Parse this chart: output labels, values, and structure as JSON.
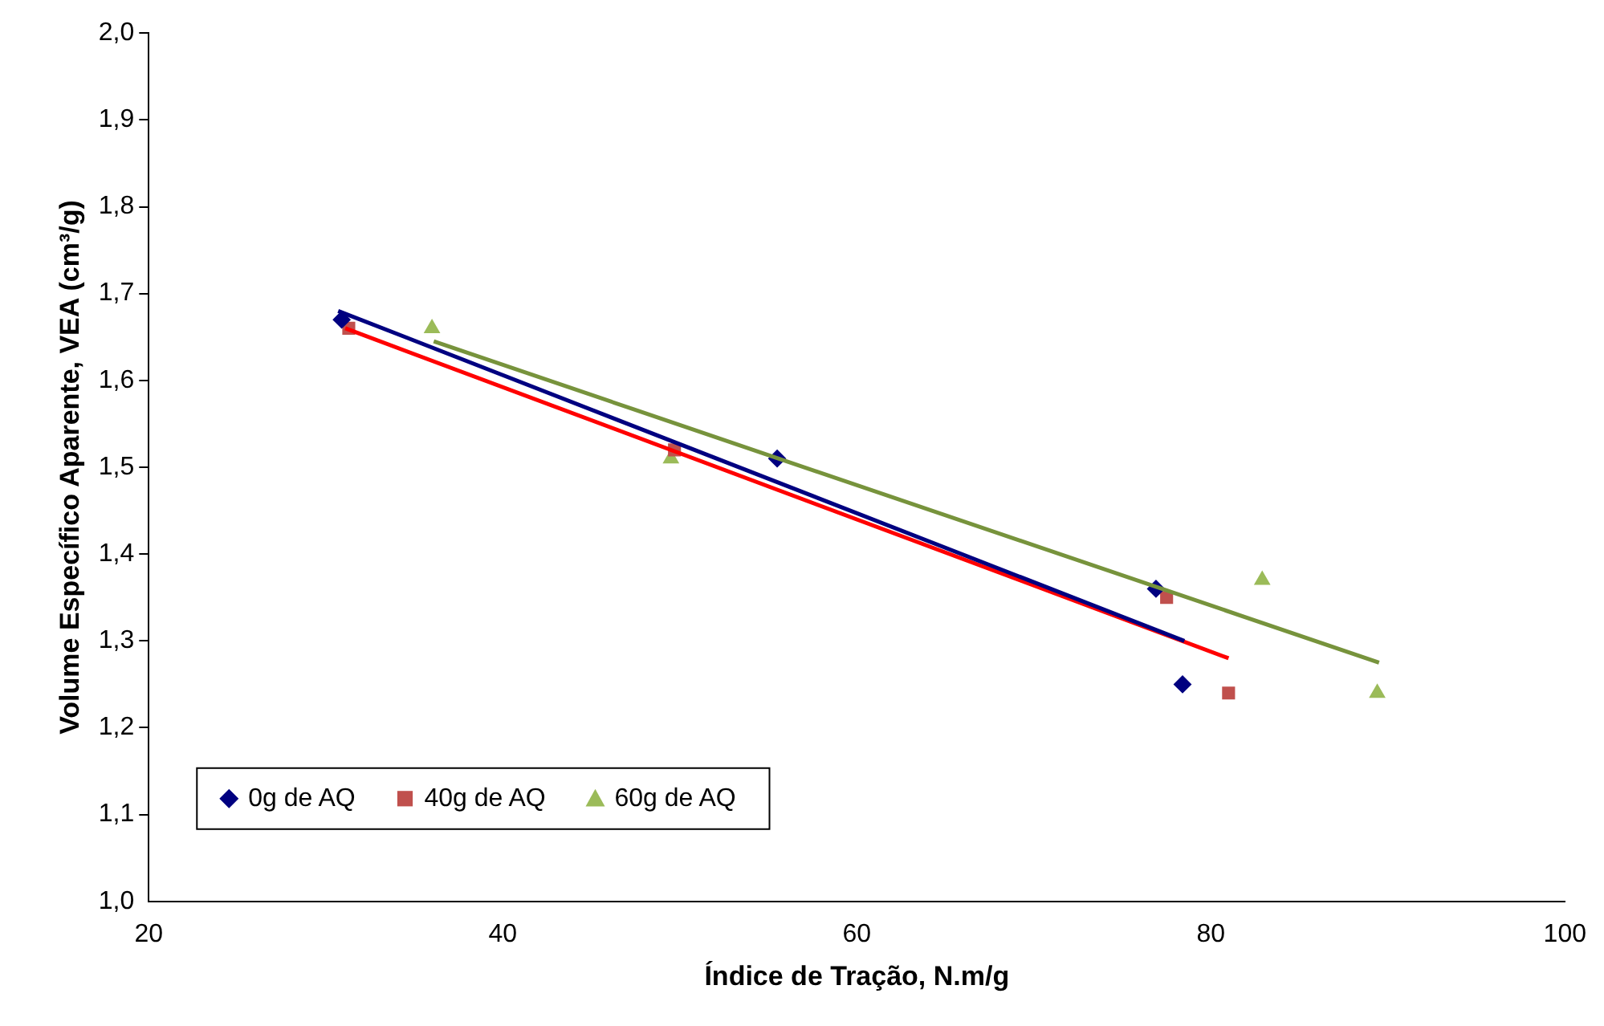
{
  "chart_data": {
    "type": "scatter",
    "xlabel": "Índice de Tração, N.m/g",
    "ylabel": "Volume Específico Aparente, VEA (cm³/g)",
    "xlim": [
      20,
      100
    ],
    "xticks": [
      20,
      40,
      60,
      80,
      100
    ],
    "ylim": [
      1.0,
      2.0
    ],
    "yticks": [
      {
        "value": 1.0,
        "label": "1,0"
      },
      {
        "value": 1.1,
        "label": "1,1"
      },
      {
        "value": 1.2,
        "label": "1,2"
      },
      {
        "value": 1.3,
        "label": "1,3"
      },
      {
        "value": 1.4,
        "label": "1,4"
      },
      {
        "value": 1.5,
        "label": "1,5"
      },
      {
        "value": 1.6,
        "label": "1,6"
      },
      {
        "value": 1.7,
        "label": "1,7"
      },
      {
        "value": 1.8,
        "label": "1,8"
      },
      {
        "value": 1.9,
        "label": "1,9"
      },
      {
        "value": 2.0,
        "label": "2,0"
      }
    ],
    "grid": false,
    "legend": "bottom left",
    "series": [
      {
        "name": "0g de AQ",
        "type": "scatter",
        "marker": "diamond",
        "color": "#000080",
        "x": [
          30.9,
          55.5,
          76.9,
          78.4
        ],
        "values": [
          1.67,
          1.51,
          1.36,
          1.25
        ]
      },
      {
        "name": "40g de AQ",
        "type": "scatter",
        "marker": "square",
        "color": "#c0504d",
        "x": [
          31.3,
          49.7,
          77.5,
          81.0
        ],
        "values": [
          1.66,
          1.52,
          1.35,
          1.24
        ]
      },
      {
        "name": "60g de AQ",
        "type": "scatter",
        "marker": "triangle",
        "color": "#9bbb59",
        "x": [
          36.0,
          49.5,
          82.9,
          89.4
        ],
        "values": [
          1.66,
          1.51,
          1.37,
          1.24
        ]
      },
      {
        "type": "line",
        "marker": "none",
        "color": "#000080",
        "x": [
          30.7,
          78.5
        ],
        "values": [
          1.68,
          1.3
        ]
      },
      {
        "type": "line",
        "marker": "none",
        "color": "#ff0000",
        "x": [
          31.1,
          81.0
        ],
        "values": [
          1.66,
          1.28
        ]
      },
      {
        "type": "line",
        "marker": "none",
        "color": "#77933c",
        "x": [
          36.1,
          89.5
        ],
        "values": [
          1.645,
          1.275
        ]
      }
    ]
  }
}
